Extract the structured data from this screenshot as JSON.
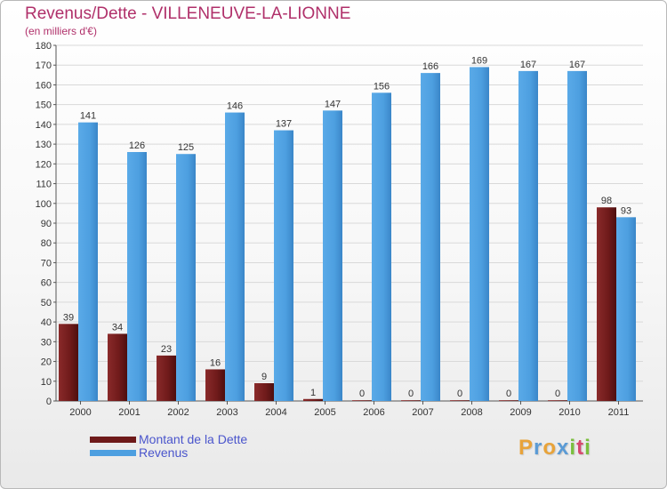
{
  "title": "Revenus/Dette - VILLENEUVE-LA-LIONNE",
  "subtitle": "(en milliers d'€)",
  "logo": {
    "letters": [
      "P",
      "r",
      "o",
      "x",
      "i",
      "t",
      "i"
    ],
    "colors": [
      "#e8a33a",
      "#5b9bd5",
      "#e8a33a",
      "#5b9bd5",
      "#7bbf3e",
      "#d6486e",
      "#7bbf3e"
    ]
  },
  "colors": {
    "dette": "#6e1a1a",
    "revenus": "#4d9fe0",
    "title": "#b0306a",
    "legend_text": "#4a55cc"
  },
  "chart_data": {
    "type": "bar",
    "title": "Revenus/Dette - VILLENEUVE-LA-LIONNE",
    "ylabel": "(en milliers d'€)",
    "xlabel": "",
    "ylim": [
      0,
      180
    ],
    "yticks": [
      0,
      10,
      20,
      30,
      40,
      50,
      60,
      70,
      80,
      90,
      100,
      110,
      120,
      130,
      140,
      150,
      160,
      170,
      180
    ],
    "grid": true,
    "legend_position": "bottom-left",
    "categories": [
      "2000",
      "2001",
      "2002",
      "2003",
      "2004",
      "2005",
      "2006",
      "2007",
      "2008",
      "2009",
      "2010",
      "2011"
    ],
    "series": [
      {
        "name": "Montant de la Dette",
        "values": [
          39,
          34,
          23,
          16,
          9,
          1,
          0,
          0,
          0,
          0,
          0,
          98
        ]
      },
      {
        "name": "Revenus",
        "values": [
          141,
          126,
          125,
          146,
          137,
          147,
          156,
          166,
          169,
          167,
          167,
          93
        ]
      }
    ]
  }
}
